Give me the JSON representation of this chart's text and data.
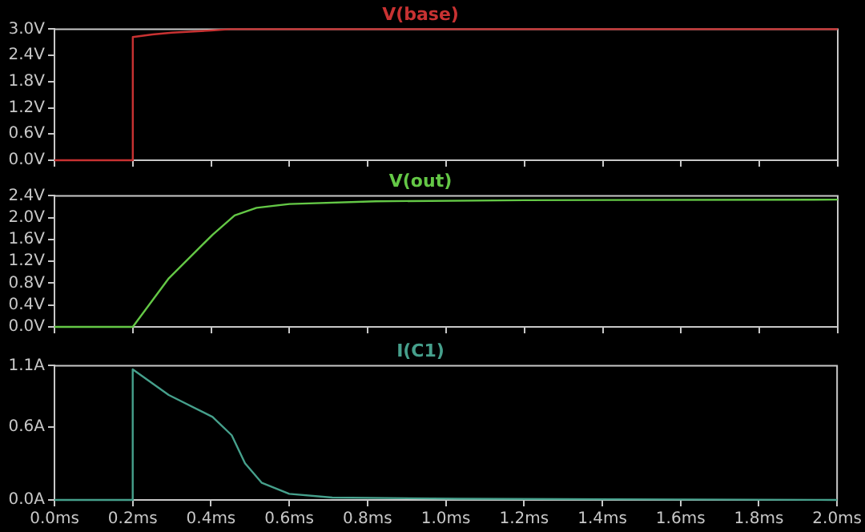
{
  "chart_data": [
    {
      "type": "line",
      "title": "V(base)",
      "color": "#c83232",
      "x": [
        0,
        0.2,
        0.2,
        0.25,
        0.3,
        0.4,
        0.45,
        2.0
      ],
      "values": [
        0,
        0,
        2.82,
        2.88,
        2.92,
        2.97,
        3.0,
        3.0
      ],
      "xlim": [
        0,
        2
      ],
      "xticks": [
        {
          "value": 0,
          "label": null
        },
        {
          "value": 0.2,
          "label": null
        },
        {
          "value": 0.4,
          "label": null
        },
        {
          "value": 0.6,
          "label": null
        },
        {
          "value": 0.8,
          "label": null
        },
        {
          "value": 1.0,
          "label": null
        },
        {
          "value": 1.2,
          "label": null
        },
        {
          "value": 1.4,
          "label": null
        },
        {
          "value": 1.6,
          "label": null
        },
        {
          "value": 1.8,
          "label": null
        },
        {
          "value": 2.0,
          "label": null
        }
      ],
      "ylim": [
        0,
        3
      ],
      "yticks": [
        {
          "value": 0,
          "label": "0.0V"
        },
        {
          "value": 0.6,
          "label": "0.6V"
        },
        {
          "value": 1.2,
          "label": "1.2V"
        },
        {
          "value": 1.8,
          "label": "1.8V"
        },
        {
          "value": 2.4,
          "label": "2.4V"
        },
        {
          "value": 3.0,
          "label": "3.0V"
        }
      ],
      "tick_labels": "y",
      "grid": false,
      "legend": false,
      "marker": "none"
    },
    {
      "type": "line",
      "title": "V(out)",
      "color": "#64c846",
      "x": [
        0,
        0.2,
        0.292,
        0.404,
        0.46,
        0.516,
        0.6,
        0.82,
        1.2,
        2.0
      ],
      "values": [
        0,
        0,
        0.89,
        1.69,
        2.04,
        2.18,
        2.25,
        2.3,
        2.32,
        2.33
      ],
      "xlim": [
        0,
        2
      ],
      "xticks": [
        {
          "value": 0,
          "label": null
        },
        {
          "value": 0.2,
          "label": null
        },
        {
          "value": 0.4,
          "label": null
        },
        {
          "value": 0.6,
          "label": null
        },
        {
          "value": 0.8,
          "label": null
        },
        {
          "value": 1.0,
          "label": null
        },
        {
          "value": 1.2,
          "label": null
        },
        {
          "value": 1.4,
          "label": null
        },
        {
          "value": 1.6,
          "label": null
        },
        {
          "value": 1.8,
          "label": null
        },
        {
          "value": 2.0,
          "label": null
        }
      ],
      "ylim": [
        0,
        2.4
      ],
      "yticks": [
        {
          "value": 0,
          "label": "0.0V"
        },
        {
          "value": 0.4,
          "label": "0.4V"
        },
        {
          "value": 0.8,
          "label": "0.8V"
        },
        {
          "value": 1.2,
          "label": "1.2V"
        },
        {
          "value": 1.6,
          "label": "1.6V"
        },
        {
          "value": 2.0,
          "label": "2.0V"
        },
        {
          "value": 2.4,
          "label": "2.4V"
        }
      ],
      "tick_labels": "y",
      "grid": false,
      "legend": false,
      "marker": "none"
    },
    {
      "type": "line",
      "title": "I(C1)",
      "color": "#46a08c",
      "x": [
        0,
        0.2,
        0.2,
        0.292,
        0.404,
        0.453,
        0.487,
        0.53,
        0.6,
        0.71,
        1.03,
        2.0
      ],
      "values": [
        0,
        0,
        1.07,
        0.86,
        0.68,
        0.53,
        0.3,
        0.14,
        0.05,
        0.02,
        0.01,
        0
      ],
      "xlim": [
        0,
        2
      ],
      "xticks": [
        {
          "value": 0,
          "label": "0.0ms"
        },
        {
          "value": 0.2,
          "label": "0.2ms"
        },
        {
          "value": 0.4,
          "label": "0.4ms"
        },
        {
          "value": 0.6,
          "label": "0.6ms"
        },
        {
          "value": 0.8,
          "label": "0.8ms"
        },
        {
          "value": 1.0,
          "label": "1.0ms"
        },
        {
          "value": 1.2,
          "label": "1.2ms"
        },
        {
          "value": 1.4,
          "label": "1.4ms"
        },
        {
          "value": 1.6,
          "label": "1.6ms"
        },
        {
          "value": 1.8,
          "label": "1.8ms"
        },
        {
          "value": 2.0,
          "label": "2.0ms"
        }
      ],
      "ylim": [
        0,
        1.1
      ],
      "yticks": [
        {
          "value": 0,
          "label": "0.0A"
        },
        {
          "value": 0.6,
          "label": "0.6A"
        },
        {
          "value": 1.1,
          "label": "1.1A"
        }
      ],
      "grid": false,
      "legend": false,
      "marker": "none"
    }
  ]
}
